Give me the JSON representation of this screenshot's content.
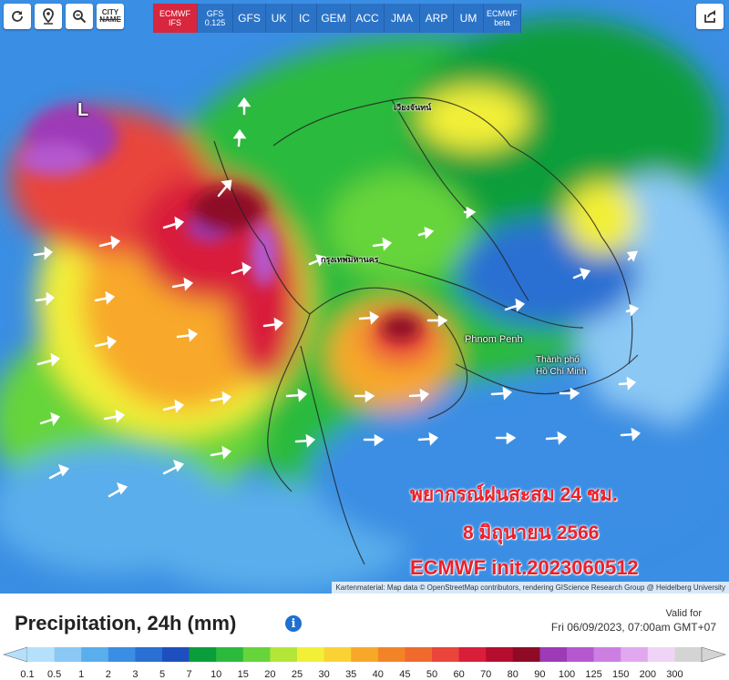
{
  "toolbar": {
    "models": [
      {
        "label": "ECMWF",
        "sub": "IFS",
        "active": true
      },
      {
        "label": "GFS",
        "sub": "0.125",
        "active": false
      },
      {
        "label": "GFS",
        "sub": "",
        "active": false
      },
      {
        "label": "UK",
        "sub": "",
        "active": false
      },
      {
        "label": "IC",
        "sub": "",
        "active": false
      },
      {
        "label": "GEM",
        "sub": "",
        "active": false
      },
      {
        "label": "ACC",
        "sub": "",
        "active": false
      },
      {
        "label": "JMA",
        "sub": "",
        "active": false
      },
      {
        "label": "ARP",
        "sub": "",
        "active": false
      },
      {
        "label": "UM",
        "sub": "",
        "active": false
      },
      {
        "label": "ECMWF",
        "sub": "beta",
        "active": false
      }
    ],
    "city_line1": "CITY",
    "city_line2": "NAME"
  },
  "overlay": {
    "line1": "พยากรณ์ฝนสะสม 24 ชม.",
    "line2": "8 มิถุนายน 2566",
    "line3": "ECMWF init.2023060512"
  },
  "map": {
    "labels": {
      "low": "L",
      "bangkok": "กรุงเทพมหานคร",
      "phnom_penh": "Phnom Penh",
      "hcmc_1": "Thành phố",
      "hcmc_2": "Hồ Chí Minh",
      "vientiane": "เวียงจันทน์"
    },
    "attribution": "Kartenmaterial: Map data © OpenStreetMap contributors, rendering GIScience Research Group @ Heidelberg University"
  },
  "legend": {
    "title": "Precipitation, 24h (mm)",
    "valid_label": "Valid for",
    "valid_time": "Fri 06/09/2023, 07:00am GMT+07",
    "ticks": [
      "0.1",
      "0.5",
      "1",
      "2",
      "3",
      "5",
      "7",
      "10",
      "15",
      "20",
      "25",
      "30",
      "35",
      "40",
      "45",
      "50",
      "60",
      "70",
      "80",
      "90",
      "100",
      "125",
      "150",
      "200",
      "300"
    ],
    "colors": [
      "#b4e0fb",
      "#8bc8f4",
      "#5aaeeb",
      "#3a8ee3",
      "#2a6fd2",
      "#1e4fbf",
      "#0a9e3b",
      "#2cba3c",
      "#66d43a",
      "#b3e636",
      "#f2ef38",
      "#fbd234",
      "#f8a829",
      "#f28427",
      "#ef6a2c",
      "#e9453a",
      "#d91e3a",
      "#b50d2e",
      "#8e0a25",
      "#9d3ab7",
      "#b558cf",
      "#cc7fe1",
      "#e1a8ef",
      "#f0d4f7",
      "#d4d4d4"
    ]
  }
}
